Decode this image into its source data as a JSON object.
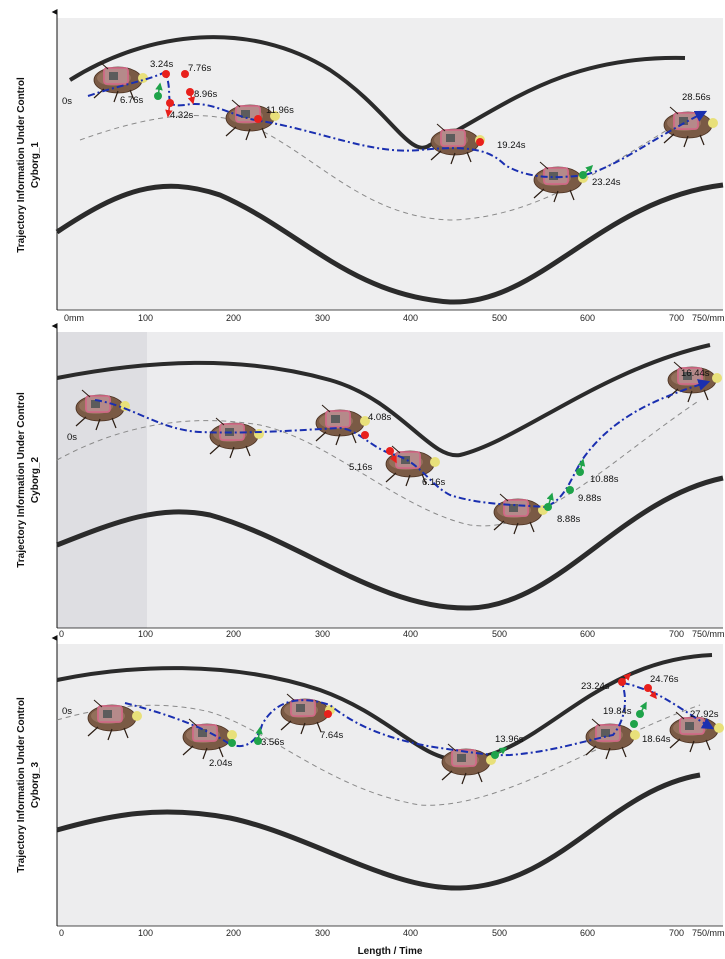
{
  "figure": {
    "x_axis_label": "Length / Time",
    "colors": {
      "trajectory": "#1a2fb0",
      "start_marker": "#e8201c",
      "end_marker": "#1fa34a",
      "wall": "#2b2b2b",
      "reference_path": "#8a8a8a",
      "cockroach_body": "#7a5a45",
      "backpack_outline": "#d06a86"
    },
    "panels": [
      {
        "y_label_line1": "Trajectory Information Under Control",
        "y_label_line2": "Cyborg_1",
        "x_ticks": [
          "0mm",
          "100",
          "200",
          "300",
          "400",
          "500",
          "600",
          "700",
          "750/mm"
        ],
        "time_labels": [
          {
            "text": "0s",
            "pos_mm": -5
          },
          {
            "text": "3.24s",
            "pos_mm": 123
          },
          {
            "text": "7.76s",
            "pos_mm": 160
          },
          {
            "text": "6.76s",
            "pos_mm": 95
          },
          {
            "text": "8.96s",
            "pos_mm": 153
          },
          {
            "text": "4.32s",
            "pos_mm": 130
          },
          {
            "text": "11.96s",
            "pos_mm": 240
          },
          {
            "text": "19.24s",
            "pos_mm": 483
          },
          {
            "text": "23.24s",
            "pos_mm": 603
          },
          {
            "text": "28.56s",
            "pos_mm": 706
          }
        ]
      },
      {
        "y_label_line1": "Trajectory Information Under Control",
        "y_label_line2": "Cyborg_2",
        "x_ticks": [
          "0",
          "100",
          "200",
          "300",
          "400",
          "500",
          "600",
          "700",
          "750/mm"
        ],
        "time_labels": [
          {
            "text": "0s",
            "pos_mm": 12
          },
          {
            "text": "4.08s",
            "pos_mm": 350
          },
          {
            "text": "5.16s",
            "pos_mm": 340
          },
          {
            "text": "6.16s",
            "pos_mm": 422
          },
          {
            "text": "16.44s",
            "pos_mm": 702
          },
          {
            "text": "10.88s",
            "pos_mm": 595
          },
          {
            "text": "9.88s",
            "pos_mm": 578
          },
          {
            "text": "8.88s",
            "pos_mm": 555
          }
        ]
      },
      {
        "y_label_line1": "Trajectory Information Under Control",
        "y_label_line2": "Cyborg_3",
        "x_ticks": [
          "0",
          "100",
          "200",
          "300",
          "400",
          "500",
          "600",
          "700",
          "750/mm"
        ],
        "time_labels": [
          {
            "text": "0s",
            "pos_mm": -4
          },
          {
            "text": "2.04s",
            "pos_mm": 170
          },
          {
            "text": "3.56s",
            "pos_mm": 232
          },
          {
            "text": "7.64s",
            "pos_mm": 300
          },
          {
            "text": "13.96s",
            "pos_mm": 485
          },
          {
            "text": "23.24s",
            "pos_mm": 590
          },
          {
            "text": "24.76s",
            "pos_mm": 667
          },
          {
            "text": "19.84s",
            "pos_mm": 593
          },
          {
            "text": "27.92s",
            "pos_mm": 708
          },
          {
            "text": "18.64s",
            "pos_mm": 660
          }
        ]
      }
    ]
  }
}
